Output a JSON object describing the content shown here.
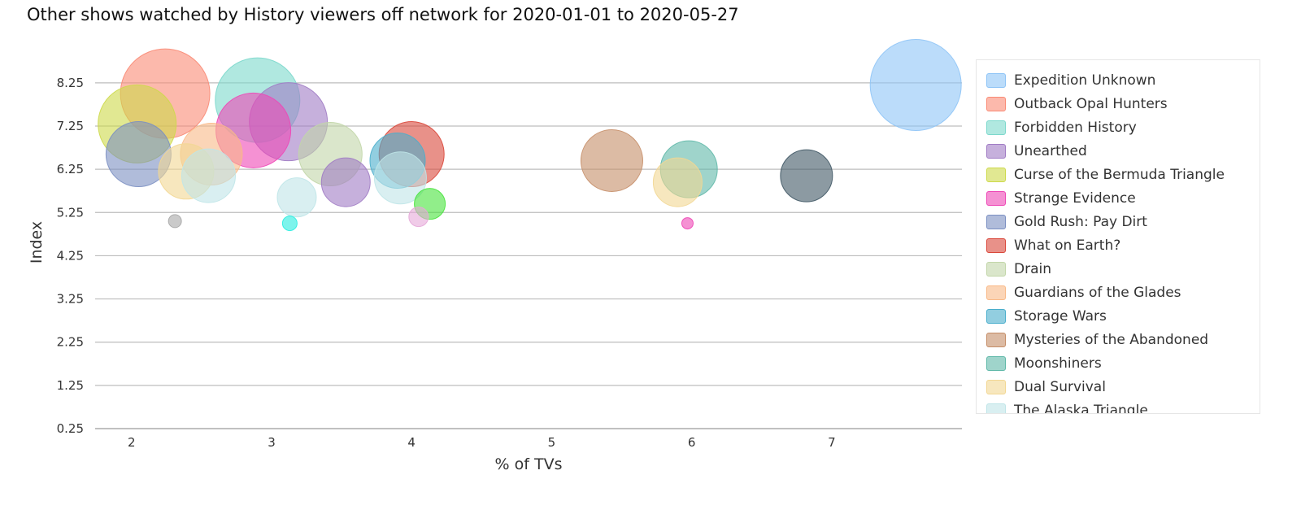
{
  "chart_data": {
    "type": "scatter",
    "title": "Other shows watched by History viewers off network for 2020-01-01 to 2020-05-27",
    "xlabel": "% of TVs",
    "ylabel": "Index",
    "xlim": [
      1.74,
      7.93
    ],
    "ylim": [
      0.25,
      9.0
    ],
    "x_ticks": [
      "2",
      "3",
      "4",
      "5",
      "6",
      "7"
    ],
    "y_ticks": [
      "0.25",
      "1.25",
      "2.25",
      "3.25",
      "4.25",
      "5.25",
      "6.25",
      "7.25",
      "8.25"
    ],
    "grid": "horizontal",
    "legend_position": "right",
    "series": [
      {
        "name": "Expedition Unknown",
        "color": "#8ec4f6",
        "points": [
          {
            "x": 7.6,
            "y": 8.2,
            "size": 56
          }
        ]
      },
      {
        "name": "Outback Opal Hunters",
        "color": "#fa8a74",
        "points": [
          {
            "x": 2.24,
            "y": 8.0,
            "size": 55
          }
        ]
      },
      {
        "name": "Forbidden History",
        "color": "#7cd8cc",
        "points": [
          {
            "x": 2.9,
            "y": 7.85,
            "size": 52
          }
        ]
      },
      {
        "name": "Unearthed",
        "color": "#a07bc4",
        "points": [
          {
            "x": 3.12,
            "y": 7.35,
            "size": 48
          },
          {
            "x": 3.53,
            "y": 5.95,
            "size": 30
          }
        ]
      },
      {
        "name": "Curse of the Bermuda Triangle",
        "color": "#cdd94a",
        "points": [
          {
            "x": 2.04,
            "y": 7.3,
            "size": 48
          }
        ]
      },
      {
        "name": "Strange Evidence",
        "color": "#ee47b6",
        "points": [
          {
            "x": 2.87,
            "y": 7.15,
            "size": 46
          },
          {
            "x": 5.97,
            "y": 5.0,
            "size": 7
          }
        ]
      },
      {
        "name": "Gold Rush: Pay Dirt",
        "color": "#7b8fc2",
        "points": [
          {
            "x": 2.05,
            "y": 6.6,
            "size": 40
          }
        ]
      },
      {
        "name": "What on Earth?",
        "color": "#d9473a",
        "points": [
          {
            "x": 4.0,
            "y": 6.6,
            "size": 40
          }
        ]
      },
      {
        "name": "Drain",
        "color": "#c2d6a9",
        "points": [
          {
            "x": 3.42,
            "y": 6.6,
            "size": 39
          }
        ]
      },
      {
        "name": "Guardians of the Glades",
        "color": "#f9b987",
        "points": [
          {
            "x": 2.57,
            "y": 6.6,
            "size": 38
          }
        ]
      },
      {
        "name": "Storage Wars",
        "color": "#4aaecc",
        "points": [
          {
            "x": 3.9,
            "y": 6.45,
            "size": 34
          }
        ]
      },
      {
        "name": "Mysteries of the Abandoned",
        "color": "#c58d67",
        "points": [
          {
            "x": 5.43,
            "y": 6.45,
            "size": 38
          }
        ]
      },
      {
        "name": "Moonshiners",
        "color": "#5fb8a8",
        "points": [
          {
            "x": 5.98,
            "y": 6.25,
            "size": 35
          }
        ]
      },
      {
        "name": "Dual Survival",
        "color": "#f2d793",
        "points": [
          {
            "x": 2.39,
            "y": 6.2,
            "size": 34
          },
          {
            "x": 5.9,
            "y": 5.95,
            "size": 30
          }
        ]
      },
      {
        "name": "The Alaska Triangle",
        "color": "#bfe5e8",
        "points": [
          {
            "x": 2.55,
            "y": 6.1,
            "size": 33
          },
          {
            "x": 3.92,
            "y": 6.05,
            "size": 32
          },
          {
            "x": 3.18,
            "y": 5.6,
            "size": 24
          }
        ]
      },
      {
        "name": "",
        "color": "#3f5764",
        "points": [
          {
            "x": 6.82,
            "y": 6.1,
            "size": 32
          }
        ]
      },
      {
        "name": "",
        "color": "#47e33c",
        "points": [
          {
            "x": 4.13,
            "y": 5.45,
            "size": 19
          }
        ]
      },
      {
        "name": "",
        "color": "#e6a8d8",
        "points": [
          {
            "x": 4.05,
            "y": 5.15,
            "size": 12
          }
        ]
      },
      {
        "name": "",
        "color": "#27ede0",
        "points": [
          {
            "x": 3.13,
            "y": 5.0,
            "size": 9
          }
        ]
      },
      {
        "name": "",
        "color": "#a6a6a6",
        "points": [
          {
            "x": 2.31,
            "y": 5.05,
            "size": 8
          }
        ]
      }
    ]
  }
}
